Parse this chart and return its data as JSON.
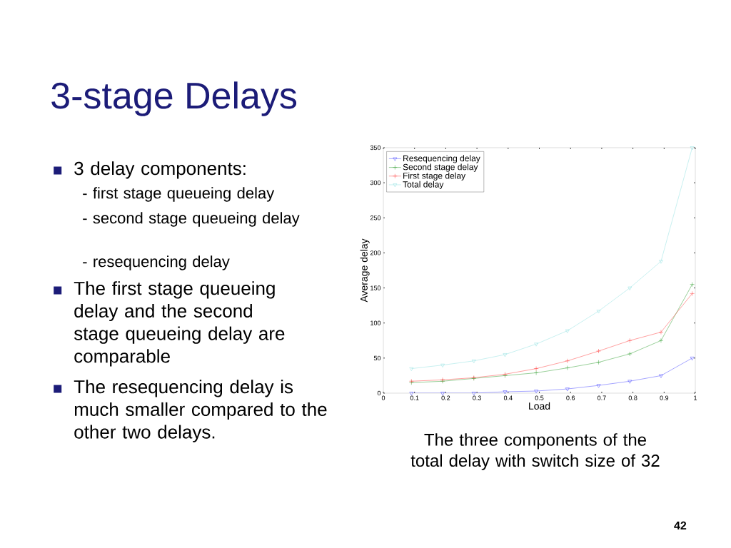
{
  "chart_data": {
    "type": "line",
    "title": "3-stage Delays",
    "xlabel": "Load",
    "ylabel": "Average delay",
    "xlim": [
      0,
      1
    ],
    "xticks": [
      0,
      0.1,
      0.2,
      0.3,
      0.4,
      0.5,
      0.6,
      0.7,
      0.8,
      0.9,
      1
    ],
    "ylim": [
      0,
      350
    ],
    "yticks": [
      0,
      50,
      100,
      150,
      200,
      250,
      300,
      350
    ],
    "x": [
      0.09,
      0.19,
      0.29,
      0.39,
      0.49,
      0.59,
      0.69,
      0.79,
      0.89,
      0.99
    ],
    "series": [
      {
        "name": "Resequencing delay",
        "color": "#4a4aff",
        "marker": "triangle",
        "values": [
          0,
          0,
          0,
          2,
          3,
          6,
          11,
          17,
          25,
          50
        ]
      },
      {
        "name": "Second stage delay",
        "color": "#33a033",
        "marker": "cross",
        "values": [
          15,
          17,
          21,
          25,
          29,
          36,
          44,
          56,
          75,
          155
        ]
      },
      {
        "name": "First stage delay",
        "color": "#ff4040",
        "marker": "cross",
        "values": [
          17,
          19,
          22,
          27,
          35,
          46,
          60,
          75,
          87,
          142
        ]
      },
      {
        "name": "Total delay",
        "color": "#8fe0e0",
        "marker": "triangle",
        "values": [
          35,
          40,
          46,
          55,
          70,
          89,
          117,
          150,
          188,
          350
        ]
      }
    ],
    "legend": "top left",
    "grid": false,
    "line_style": "solid",
    "annotations": [
      "3 delay components:",
      "- first stage queueing delay",
      "- second stage queueing delay",
      "- resequencing delay",
      "The first stage queueing delay and the second stage queueing delay are comparable",
      "The resequencing delay is much smaller compared to the other two delays.",
      "The  three components of the total delay with switch size of 32",
      "42"
    ]
  }
}
